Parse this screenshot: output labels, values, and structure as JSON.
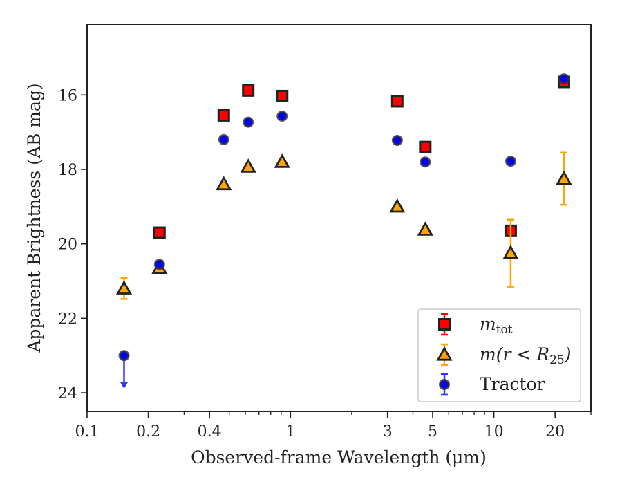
{
  "chart_data": {
    "type": "scatter",
    "xscale": "log",
    "xlim": [
      0.1,
      30
    ],
    "ylim": [
      24.5,
      14.1
    ],
    "y_inverted": true,
    "xlabel": "Observed-frame Wavelength (μm)",
    "ylabel": "Apparent Brightness (AB mag)",
    "xticks": [
      {
        "value": 0.1,
        "label": "0.1"
      },
      {
        "value": 0.2,
        "label": "0.2"
      },
      {
        "value": 0.4,
        "label": "0.4"
      },
      {
        "value": 1,
        "label": "1"
      },
      {
        "value": 3,
        "label": "3"
      },
      {
        "value": 5,
        "label": "5"
      },
      {
        "value": 10,
        "label": "10"
      },
      {
        "value": 20,
        "label": "20"
      }
    ],
    "yticks": [
      {
        "value": 16,
        "label": "16"
      },
      {
        "value": 18,
        "label": "18"
      },
      {
        "value": 20,
        "label": "20"
      },
      {
        "value": 22,
        "label": "22"
      },
      {
        "value": 24,
        "label": "24"
      }
    ],
    "legend": {
      "position": "lower right",
      "entries": [
        {
          "label": "m_tot",
          "main": "m",
          "sub": "tot"
        },
        {
          "label": "m(r < R_25)",
          "main": "m(r < R",
          "sub": "25",
          "tail": ")"
        },
        {
          "label": "Tractor",
          "main": "Tractor"
        }
      ]
    },
    "series": [
      {
        "name": "m_tot",
        "marker": "square",
        "color": "#ff0000",
        "edge": "#222222",
        "errcolor": "#ff0000",
        "points": [
          {
            "x": 0.227,
            "y": 19.7,
            "err": 0.05
          },
          {
            "x": 0.47,
            "y": 16.55,
            "err": 0.05
          },
          {
            "x": 0.62,
            "y": 15.88,
            "err": 0.05
          },
          {
            "x": 0.91,
            "y": 16.03,
            "err": 0.05
          },
          {
            "x": 3.35,
            "y": 16.17,
            "err": 0.05
          },
          {
            "x": 4.6,
            "y": 17.4,
            "err": 0.05
          },
          {
            "x": 12.1,
            "y": 19.65,
            "err": 0.05
          },
          {
            "x": 22.1,
            "y": 15.65,
            "err": 0.05
          }
        ]
      },
      {
        "name": "m(r < R_25)",
        "marker": "triangle",
        "color": "#ffa500",
        "edge": "#222222",
        "errcolor": "#ffa500",
        "points": [
          {
            "x": 0.152,
            "y": 21.2,
            "err": 0.28
          },
          {
            "x": 0.227,
            "y": 20.65,
            "err": 0.05
          },
          {
            "x": 0.47,
            "y": 18.4,
            "err": 0.05
          },
          {
            "x": 0.62,
            "y": 17.93,
            "err": 0.05
          },
          {
            "x": 0.91,
            "y": 17.8,
            "err": 0.05
          },
          {
            "x": 3.35,
            "y": 19.0,
            "err": 0.05
          },
          {
            "x": 4.6,
            "y": 19.62,
            "err": 0.05
          },
          {
            "x": 12.1,
            "y": 20.25,
            "err": 0.9
          },
          {
            "x": 22.1,
            "y": 18.25,
            "err": 0.7
          }
        ]
      },
      {
        "name": "Tractor",
        "marker": "circle",
        "color": "#0000ff",
        "edge": "#333333",
        "errcolor": "#3333ff",
        "points": [
          {
            "x": 0.152,
            "y": 23.0,
            "upper_limit": true
          },
          {
            "x": 0.227,
            "y": 20.55,
            "err": 0.05
          },
          {
            "x": 0.47,
            "y": 17.2,
            "err": 0.05
          },
          {
            "x": 0.62,
            "y": 16.73,
            "err": 0.05
          },
          {
            "x": 0.91,
            "y": 16.57,
            "err": 0.05
          },
          {
            "x": 3.35,
            "y": 17.22,
            "err": 0.05
          },
          {
            "x": 4.6,
            "y": 17.8,
            "err": 0.05
          },
          {
            "x": 12.1,
            "y": 17.78,
            "err": 0.05
          },
          {
            "x": 22.1,
            "y": 15.57,
            "err": 0.05
          }
        ]
      }
    ]
  }
}
